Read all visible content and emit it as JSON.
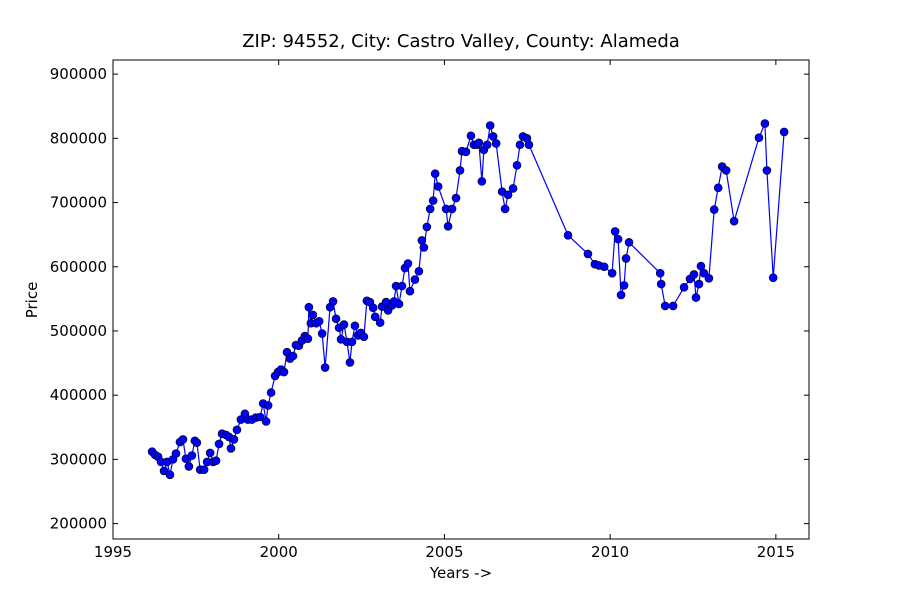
{
  "chart_data": {
    "type": "line",
    "title": "ZIP: 94552, City: Castro Valley, County: Alameda",
    "x_label": "Years ->",
    "y_label": "Price",
    "color": "#0000ff",
    "marker_color": "#0000ff",
    "xlim": [
      1995,
      2016
    ],
    "xticks": [
      1995,
      2000,
      2005,
      2010,
      2015
    ],
    "ylim": [
      176000,
      922000
    ],
    "yticks": [
      200000,
      300000,
      400000,
      500000,
      600000,
      700000,
      800000,
      900000
    ],
    "x": [
      1996.18,
      1996.27,
      1996.36,
      1996.45,
      1996.54,
      1996.63,
      1996.72,
      1996.81,
      1996.9,
      1997.02,
      1997.11,
      1997.2,
      1997.29,
      1997.38,
      1997.47,
      1997.53,
      1997.63,
      1997.75,
      1997.84,
      1997.93,
      1998.02,
      1998.11,
      1998.2,
      1998.29,
      1998.41,
      1998.5,
      1998.56,
      1998.65,
      1998.74,
      1998.86,
      1998.98,
      1999.07,
      1999.19,
      1999.31,
      1999.44,
      1999.53,
      1999.62,
      1999.68,
      1999.77,
      1999.89,
      1999.98,
      2000.07,
      2000.16,
      2000.25,
      2000.34,
      2000.43,
      2000.52,
      2000.61,
      2000.7,
      2000.79,
      2000.88,
      2000.91,
      2000.97,
      2001.03,
      2001.13,
      2001.22,
      2001.31,
      2001.4,
      2001.55,
      2001.64,
      2001.73,
      2001.82,
      2001.88,
      2001.97,
      2002.06,
      2002.15,
      2002.21,
      2002.3,
      2002.39,
      2002.48,
      2002.57,
      2002.66,
      2002.75,
      2002.85,
      2002.91,
      2003.06,
      2003.12,
      2003.24,
      2003.3,
      2003.42,
      2003.48,
      2003.54,
      2003.63,
      2003.72,
      2003.81,
      2003.9,
      2003.96,
      2004.11,
      2004.23,
      2004.32,
      2004.38,
      2004.47,
      2004.57,
      2004.66,
      2004.72,
      2004.81,
      2005.05,
      2005.11,
      2005.23,
      2005.35,
      2005.47,
      2005.53,
      2005.65,
      2005.8,
      2005.89,
      2005.98,
      2006.04,
      2006.13,
      2006.19,
      2006.29,
      2006.38,
      2006.47,
      2006.56,
      2006.74,
      2006.83,
      2006.92,
      2007.07,
      2007.19,
      2007.28,
      2007.37,
      2007.49,
      2007.55,
      2008.73,
      2009.33,
      2009.54,
      2009.66,
      2009.82,
      2010.06,
      2010.15,
      2010.24,
      2010.33,
      2010.42,
      2010.48,
      2010.57,
      2011.51,
      2011.54,
      2011.66,
      2011.9,
      2012.23,
      2012.41,
      2012.53,
      2012.59,
      2012.68,
      2012.74,
      2012.83,
      2012.98,
      2013.14,
      2013.26,
      2013.38,
      2013.5,
      2013.74,
      2014.49,
      2014.67,
      2014.73,
      2014.92,
      2015.25
    ],
    "values": [
      312000,
      307000,
      304000,
      296000,
      282000,
      296000,
      276000,
      300000,
      309000,
      327000,
      331000,
      301000,
      289000,
      306000,
      329000,
      326000,
      284000,
      284000,
      296000,
      310000,
      296000,
      298000,
      324000,
      340000,
      338000,
      335000,
      317000,
      331000,
      346000,
      362000,
      371000,
      362000,
      362000,
      365000,
      366000,
      387000,
      359000,
      384000,
      404000,
      430000,
      436000,
      440000,
      436000,
      467000,
      457000,
      461000,
      478000,
      477000,
      485000,
      492000,
      488000,
      537000,
      512000,
      525000,
      512000,
      515000,
      496000,
      443000,
      537000,
      546000,
      519000,
      505000,
      487000,
      510000,
      483000,
      451000,
      483000,
      508000,
      493000,
      497000,
      491000,
      547000,
      545000,
      536000,
      522000,
      513000,
      538000,
      545000,
      532000,
      540000,
      546000,
      570000,
      542000,
      570000,
      598000,
      605000,
      562000,
      580000,
      593000,
      641000,
      630000,
      662000,
      690000,
      703000,
      745000,
      725000,
      690000,
      663000,
      690000,
      707000,
      750000,
      780000,
      779000,
      804000,
      790000,
      790000,
      793000,
      733000,
      782000,
      790000,
      820000,
      803000,
      792000,
      717000,
      690000,
      712000,
      722000,
      758000,
      790000,
      803000,
      800000,
      790000,
      649000,
      620000,
      604000,
      602000,
      600000,
      590000,
      655000,
      643000,
      556000,
      571000,
      613000,
      638000,
      590000,
      573000,
      539000,
      539000,
      568000,
      581000,
      588000,
      552000,
      573000,
      601000,
      590000,
      582000,
      689000,
      723000,
      756000,
      750000,
      671000,
      801000,
      823000,
      750000,
      583000,
      810000
    ]
  }
}
